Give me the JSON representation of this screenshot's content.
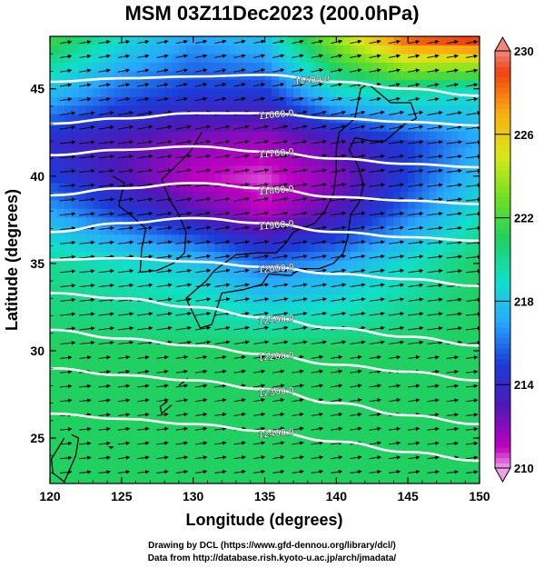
{
  "title": "MSM 03Z11Dec2023 (200.0hPa)",
  "footer": {
    "line1": "Drawing by DCL (https://www.gfd-dennou.org/library/dcl/)",
    "line2": "Data from http://database.rish.kyoto-u.ac.jp/arch/jmadata/"
  },
  "chart_data": {
    "type": "heatmap",
    "title": "MSM 03Z11Dec2023 (200.0hPa)",
    "xlabel": "Longitude (degrees)",
    "ylabel": "Latitude  (degrees)",
    "xlim": [
      120,
      150
    ],
    "ylim": [
      22.4,
      48
    ],
    "x_ticks": [
      120,
      125,
      130,
      135,
      140,
      145,
      150
    ],
    "y_ticks": [
      25,
      30,
      35,
      40,
      45
    ],
    "colorbar": {
      "min": 210,
      "max": 230,
      "ticks": [
        230,
        226,
        222,
        218,
        214,
        210
      ],
      "stops": [
        {
          "value": 210,
          "color": "#f0a0e8"
        },
        {
          "value": 211,
          "color": "#c000c0"
        },
        {
          "value": 213,
          "color": "#5018b8"
        },
        {
          "value": 215,
          "color": "#1a3cd8"
        },
        {
          "value": 217,
          "color": "#28a8ff"
        },
        {
          "value": 219,
          "color": "#10e0c8"
        },
        {
          "value": 221,
          "color": "#20d060"
        },
        {
          "value": 223,
          "color": "#70e020"
        },
        {
          "value": 225,
          "color": "#d8e818"
        },
        {
          "value": 227,
          "color": "#f8b010"
        },
        {
          "value": 229,
          "color": "#f04010"
        },
        {
          "value": 230,
          "color": "#f08878"
        }
      ]
    },
    "temperature_field": {
      "lon": [
        120,
        125,
        130,
        135,
        140,
        145,
        150
      ],
      "lat": [
        22.4,
        25,
        30,
        35,
        38,
        40,
        42,
        45,
        48
      ],
      "values": [
        [
          221,
          221,
          221,
          221,
          221,
          221,
          221
        ],
        [
          221,
          221,
          221,
          221,
          221,
          221,
          221
        ],
        [
          221,
          221,
          221,
          221,
          221,
          221,
          221
        ],
        [
          220,
          219,
          218,
          216,
          217,
          219,
          221
        ],
        [
          217,
          215,
          213,
          211,
          213,
          216,
          219
        ],
        [
          215,
          213,
          211,
          210.5,
          212,
          215,
          218
        ],
        [
          214,
          213,
          212,
          211.5,
          213,
          215,
          217
        ],
        [
          218,
          216,
          215,
          215,
          219,
          220,
          219
        ],
        [
          222,
          219,
          217,
          218,
          224,
          229,
          230
        ]
      ]
    },
    "contours": [
      {
        "label": "11500.0",
        "lat": [
          45.4,
          45.6,
          45.7,
          45.8,
          45.4,
          45.0,
          44.6
        ]
      },
      {
        "label": "11600.0",
        "lat": [
          43.0,
          43.3,
          43.6,
          43.6,
          43.3,
          43.1,
          42.9
        ]
      },
      {
        "label": "11700.0",
        "lat": [
          41.2,
          41.5,
          41.7,
          41.4,
          41.0,
          40.7,
          40.5
        ]
      },
      {
        "label": "11800.0",
        "lat": [
          38.9,
          39.3,
          39.6,
          39.3,
          38.8,
          38.6,
          38.4
        ]
      },
      {
        "label": "11900.0",
        "lat": [
          36.8,
          37.3,
          37.6,
          37.3,
          36.8,
          36.5,
          36.3
        ]
      },
      {
        "label": "12000.0",
        "lat": [
          35.2,
          35.3,
          35.1,
          34.8,
          34.4,
          34.1,
          33.7
        ]
      },
      {
        "label": "12100.0",
        "lat": [
          33.3,
          33.0,
          32.5,
          31.9,
          31.3,
          30.8,
          30.3
        ]
      },
      {
        "label": "12200.0",
        "lat": [
          31.2,
          30.7,
          30.3,
          29.8,
          29.2,
          28.8,
          28.3
        ]
      },
      {
        "label": "12300.0",
        "lat": [
          29.0,
          28.6,
          28.3,
          27.8,
          27.0,
          26.3,
          25.8
        ]
      },
      {
        "label": "12400.0",
        "lat": [
          26.4,
          26.1,
          25.8,
          25.4,
          24.8,
          24.2,
          23.7
        ]
      }
    ],
    "contour_x": [
      120,
      125,
      130,
      135,
      140,
      145,
      150
    ],
    "grid": false,
    "legend": "right"
  }
}
